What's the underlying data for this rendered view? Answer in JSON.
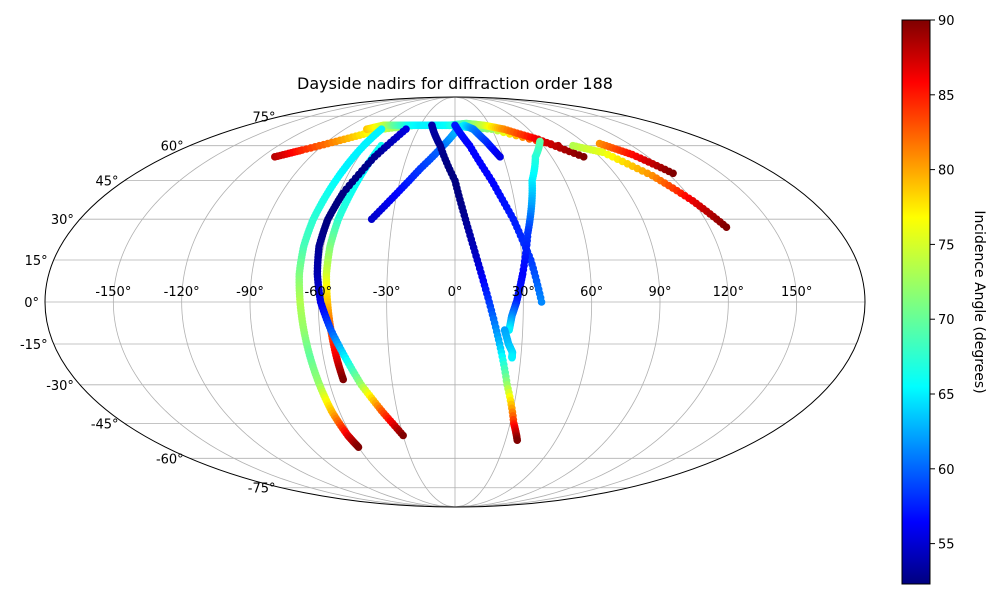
{
  "chart_data": {
    "type": "scatter",
    "projection": "mollweide",
    "title": "Dayside nadirs for diffraction order 188",
    "grid": true,
    "lon_ticks": [
      "-150°",
      "-120°",
      "-90°",
      "-60°",
      "-30°",
      "0°",
      "30°",
      "60°",
      "90°",
      "120°",
      "150°"
    ],
    "lat_ticks": [
      "-75°",
      "-60°",
      "-45°",
      "-30°",
      "-15°",
      "0°",
      "15°",
      "30°",
      "45°",
      "60°",
      "75°"
    ],
    "colorbar": {
      "label": "Incidence Angle (degrees)",
      "colormap": "jet",
      "range": [
        52.3,
        90
      ],
      "ticks": [
        "55",
        "60",
        "65",
        "70",
        "75",
        "80",
        "85",
        "90"
      ]
    },
    "tracks": [
      {
        "lon": [
          -112,
          -100,
          -80,
          -60,
          -35,
          -5,
          30,
          70
        ],
        "lat": [
          55,
          58,
          63,
          68,
          70,
          70,
          68,
          60
        ],
        "incidence": [
          88,
          84,
          79,
          74,
          70,
          68,
          72,
          88
        ]
      },
      {
        "lon": [
          -72,
          -62,
          -52,
          -40,
          -30,
          -15,
          0,
          10
        ],
        "lat": [
          68,
          70,
          70,
          70,
          70,
          70,
          70,
          69
        ],
        "incidence": [
          78,
          74,
          70,
          67,
          66,
          66,
          67,
          68
        ]
      },
      {
        "lon": [
          -5,
          10,
          25,
          40,
          60,
          80
        ],
        "lat": [
          70,
          71,
          70,
          68,
          63,
          55
        ],
        "incidence": [
          67,
          70,
          74,
          80,
          86,
          90
        ]
      },
      {
        "lon": [
          80,
          95,
          110,
          120,
          128
        ],
        "lat": [
          60,
          57,
          47,
          37,
          27
        ],
        "incidence": [
          73,
          75,
          80,
          86,
          90
        ]
      },
      {
        "lon": [
          100,
          112,
          123
        ],
        "lat": [
          61,
          56,
          48
        ],
        "incidence": [
          80,
          85,
          90
        ]
      },
      {
        "lon": [
          -60,
          -62,
          -64,
          -66,
          -68,
          -69,
          -69,
          -68,
          -67,
          -66,
          -65,
          -64,
          -62,
          -60
        ],
        "lat": [
          68,
          60,
          50,
          40,
          30,
          20,
          10,
          0,
          -10,
          -20,
          -30,
          -40,
          -50,
          -55
        ],
        "incidence": [
          66,
          66,
          66,
          67,
          68,
          69,
          71,
          73,
          72,
          70,
          72,
          78,
          86,
          90
        ]
      },
      {
        "lon": [
          -50,
          -52,
          -54,
          -56,
          -57,
          -57,
          -56,
          -55,
          -54,
          -53
        ],
        "lat": [
          60,
          50,
          40,
          30,
          20,
          10,
          0,
          -10,
          -20,
          -28
        ],
        "incidence": [
          67,
          66,
          67,
          68,
          71,
          74,
          78,
          82,
          86,
          90
        ]
      },
      {
        "lon": [
          -40,
          -50,
          -58,
          -61,
          -62,
          -61,
          -59,
          -55,
          -50,
          -45,
          -38,
          -30
        ],
        "lat": [
          68,
          55,
          40,
          30,
          20,
          10,
          0,
          -10,
          -20,
          -30,
          -40,
          -50
        ],
        "incidence": [
          56,
          53,
          52,
          52,
          53,
          54,
          56,
          60,
          66,
          72,
          82,
          90
        ]
      },
      {
        "lon": [
          -40,
          -30,
          -20,
          -8,
          2,
          8,
          15,
          22,
          28
        ],
        "lat": [
          30,
          40,
          50,
          60,
          68,
          70,
          68,
          62,
          55
        ],
        "incidence": [
          55,
          57,
          59,
          61,
          64,
          66,
          62,
          59,
          56
        ]
      },
      {
        "lon": [
          -20,
          -10,
          0,
          5,
          10,
          15,
          20,
          25,
          32,
          37
        ],
        "lat": [
          70,
          60,
          45,
          30,
          15,
          0,
          -15,
          -30,
          -45,
          -52
        ],
        "incidence": [
          54,
          53,
          52,
          53,
          55,
          59,
          64,
          72,
          84,
          90
        ]
      },
      {
        "lon": [
          0,
          10,
          20,
          28,
          34,
          38
        ],
        "lat": [
          70,
          60,
          45,
          30,
          15,
          0
        ],
        "incidence": [
          58,
          57,
          57,
          58,
          59,
          62
        ]
      },
      {
        "lon": [
          60,
          50,
          42,
          38,
          34,
          30,
          27,
          25,
          24
        ],
        "lat": [
          62,
          55,
          45,
          35,
          25,
          10,
          0,
          -5,
          -10
        ],
        "incidence": [
          70,
          68,
          66,
          63,
          59,
          57,
          58,
          62,
          66
        ]
      },
      {
        "lon": [
          22,
          24,
          26,
          26
        ],
        "lat": [
          -10,
          -15,
          -18,
          -20
        ],
        "incidence": [
          63,
          64,
          65,
          66
        ]
      }
    ]
  }
}
